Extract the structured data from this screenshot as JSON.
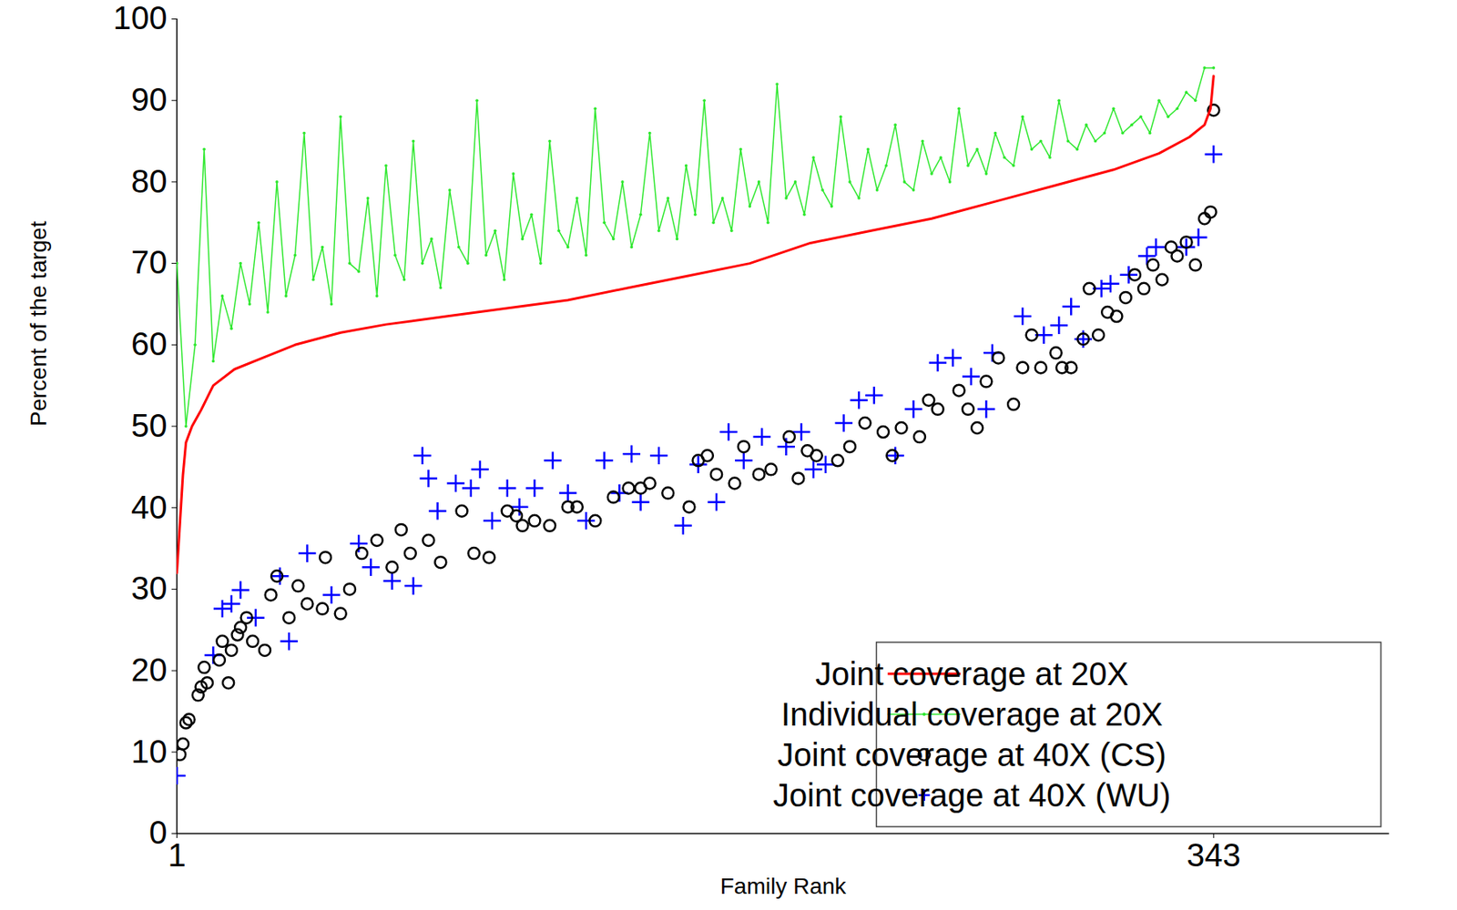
{
  "chart_data": {
    "type": "scatter",
    "x_label": "Family Rank",
    "y_label": "Percent of the target",
    "xlim": [
      1,
      401
    ],
    "xticks": [
      1,
      343
    ],
    "ylim": [
      0,
      100
    ],
    "yticks": [
      0,
      10,
      20,
      30,
      40,
      50,
      60,
      70,
      80,
      90,
      100
    ],
    "grid": false,
    "legend": "lower right",
    "series": [
      {
        "name": "Joint coverage at 20X",
        "type": "line",
        "line_style": "solid",
        "color": "#ff0000",
        "x": [
          1,
          2,
          3,
          4,
          6,
          9,
          13,
          20,
          30,
          40,
          55,
          70,
          90,
          110,
          130,
          150,
          170,
          190,
          210,
          230,
          250,
          270,
          290,
          310,
          325,
          335,
          340,
          342,
          343
        ],
        "values": [
          32,
          38,
          44,
          48,
          50,
          52,
          55,
          57,
          58.5,
          60,
          61.5,
          62.5,
          63.5,
          64.5,
          65.5,
          67,
          68.5,
          70,
          72.5,
          74,
          75.5,
          77.5,
          79.5,
          81.5,
          83.5,
          85.5,
          87,
          89,
          93
        ]
      },
      {
        "name": "Individual coverage at 20X",
        "type": "line",
        "line_style": "solid",
        "marker": "point",
        "color": "#2ee82e",
        "x": [
          1,
          4,
          7,
          10,
          13,
          16,
          19,
          22,
          25,
          28,
          31,
          34,
          37,
          40,
          43,
          46,
          49,
          52,
          55,
          58,
          61,
          64,
          67,
          70,
          73,
          76,
          79,
          82,
          85,
          88,
          91,
          94,
          97,
          100,
          103,
          106,
          109,
          112,
          115,
          118,
          121,
          124,
          127,
          130,
          133,
          136,
          139,
          142,
          145,
          148,
          151,
          154,
          157,
          160,
          163,
          166,
          169,
          172,
          175,
          178,
          181,
          184,
          187,
          190,
          193,
          196,
          199,
          202,
          205,
          208,
          211,
          214,
          217,
          220,
          223,
          226,
          229,
          232,
          235,
          238,
          241,
          244,
          247,
          250,
          253,
          256,
          259,
          262,
          265,
          268,
          271,
          274,
          277,
          280,
          283,
          286,
          289,
          292,
          295,
          298,
          301,
          304,
          307,
          310,
          313,
          316,
          319,
          322,
          325,
          328,
          331,
          334,
          337,
          340,
          343
        ],
        "values": [
          70,
          50,
          60,
          84,
          58,
          66,
          62,
          70,
          65,
          75,
          64,
          80,
          66,
          71,
          86,
          68,
          72,
          65,
          88,
          70,
          69,
          78,
          66,
          82,
          71,
          68,
          85,
          70,
          73,
          67,
          79,
          72,
          70,
          90,
          71,
          74,
          68,
          81,
          73,
          76,
          70,
          85,
          74,
          72,
          78,
          71,
          89,
          75,
          73,
          80,
          72,
          76,
          86,
          74,
          78,
          73,
          82,
          76,
          90,
          75,
          78,
          74,
          84,
          77,
          80,
          75,
          92,
          78,
          80,
          76,
          83,
          79,
          77,
          88,
          80,
          78,
          84,
          79,
          82,
          87,
          80,
          79,
          85,
          81,
          83,
          80,
          89,
          82,
          84,
          81,
          86,
          83,
          82,
          88,
          84,
          85,
          83,
          90,
          85,
          84,
          87,
          85,
          86,
          89,
          86,
          87,
          88,
          86,
          90,
          88,
          89,
          91,
          90,
          94,
          94
        ]
      },
      {
        "name": "Joint coverage at 40X (CS)",
        "type": "scatter",
        "marker": "circle",
        "color": "#000000",
        "x": [
          2,
          3,
          4,
          5,
          8,
          9,
          10,
          11,
          15,
          16,
          18,
          19,
          21,
          22,
          24,
          26,
          30,
          32,
          34,
          38,
          41,
          44,
          49,
          50,
          55,
          58,
          62,
          67,
          72,
          75,
          78,
          84,
          88,
          95,
          99,
          104,
          110,
          113,
          115,
          119,
          124,
          130,
          133,
          139,
          145,
          150,
          154,
          157,
          163,
          170,
          173,
          176,
          179,
          185,
          188,
          193,
          197,
          203,
          206,
          209,
          212,
          219,
          223,
          228,
          234,
          237,
          240,
          246,
          249,
          252,
          259,
          262,
          265,
          268,
          272,
          277,
          280,
          283,
          286,
          291,
          293,
          296,
          300,
          302,
          305,
          308,
          311,
          314,
          317,
          320,
          323,
          326,
          329,
          331,
          334,
          337,
          340,
          342,
          343
        ],
        "values": [
          9.7,
          11,
          13.6,
          14,
          17,
          18,
          20.4,
          18.5,
          21.3,
          23.6,
          18.5,
          22.5,
          24.4,
          25.3,
          26.5,
          23.6,
          22.5,
          29.3,
          31.6,
          26.5,
          30.4,
          28.2,
          27.6,
          33.9,
          27,
          30,
          34.4,
          36,
          32.7,
          37.3,
          34.4,
          36,
          33.3,
          39.6,
          34.4,
          33.9,
          39.6,
          39,
          37.8,
          38.4,
          37.8,
          40.1,
          40.1,
          38.4,
          41.3,
          42.4,
          42.4,
          43,
          41.8,
          40.1,
          45.8,
          46.4,
          44.1,
          43,
          47.5,
          44.1,
          44.7,
          48.7,
          43.6,
          47,
          46.4,
          45.8,
          47.5,
          50.4,
          49.3,
          46.4,
          49.8,
          48.7,
          53.2,
          52.1,
          54.4,
          52.1,
          49.8,
          55.5,
          58.4,
          52.7,
          57.2,
          61.2,
          57.2,
          59,
          57.2,
          57.2,
          60.7,
          66.9,
          61.2,
          64,
          63.5,
          65.8,
          68.6,
          66.9,
          69.8,
          68,
          72,
          70.9,
          72.6,
          69.8,
          75.5,
          76.3,
          88.8
        ]
      },
      {
        "name": "Joint coverage at 40X (WU)",
        "type": "scatter",
        "marker": "plus",
        "color": "#0000ff",
        "x": [
          1,
          13,
          16,
          19,
          22,
          27,
          35,
          38,
          44,
          52,
          61,
          65,
          72,
          79,
          82,
          84,
          87,
          93,
          98,
          101,
          105,
          110,
          114,
          119,
          125,
          130,
          136,
          142,
          147,
          151,
          154,
          160,
          168,
          173,
          179,
          183,
          188,
          194,
          202,
          207,
          211,
          215,
          221,
          226,
          231,
          238,
          244,
          252,
          257,
          263,
          268,
          270,
          280,
          287,
          292,
          296,
          300,
          306,
          309,
          315,
          321,
          324,
          334,
          338,
          343
        ],
        "values": [
          7.1,
          21.9,
          27.6,
          28.2,
          29.9,
          26.5,
          31.6,
          23.6,
          34.4,
          29.3,
          35.6,
          32.7,
          31,
          30.4,
          46.4,
          43.6,
          39.6,
          43,
          42.4,
          44.7,
          38.4,
          42.4,
          40.1,
          42.4,
          45.8,
          41.8,
          38.4,
          45.8,
          41.8,
          46.6,
          40.7,
          46.4,
          37.8,
          45.3,
          40.7,
          49.3,
          45.8,
          48.7,
          47.5,
          49.3,
          44.7,
          45.3,
          50.4,
          53.2,
          53.8,
          46.4,
          52.1,
          57.8,
          58.4,
          56.1,
          52.1,
          59,
          63.5,
          61.2,
          62.4,
          64.7,
          60.7,
          66.9,
          67.5,
          68.6,
          70.9,
          72,
          72,
          73.2,
          83.4
        ]
      }
    ]
  }
}
